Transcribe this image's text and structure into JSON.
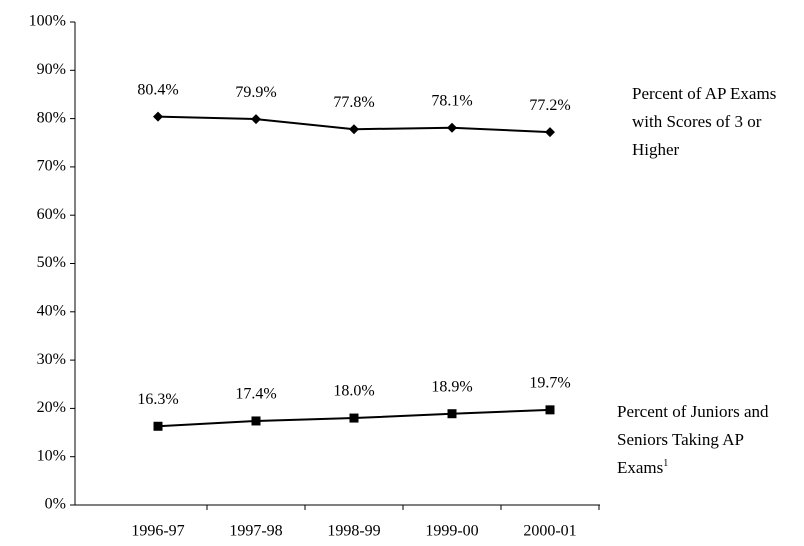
{
  "chart_data": {
    "type": "line",
    "categories": [
      "1996-97",
      "1997-98",
      "1998-99",
      "1999-00",
      "2000-01"
    ],
    "series": [
      {
        "name": "Percent of AP Exams with Scores of 3 or Higher",
        "color": "#000000",
        "marker": "diamond",
        "values": [
          80.4,
          79.9,
          77.8,
          78.1,
          77.2
        ],
        "value_labels": [
          "80.4%",
          "79.9%",
          "77.8%",
          "78.1%",
          "77.2%"
        ]
      },
      {
        "name": "Percent of Juniors and Seniors Taking AP Exams",
        "footnote": "1",
        "color": "#000000",
        "marker": "square",
        "values": [
          16.3,
          17.4,
          18.0,
          18.9,
          19.7
        ],
        "value_labels": [
          "16.3%",
          "17.4%",
          "18.0%",
          "18.9%",
          "19.7%"
        ]
      }
    ],
    "ylim": [
      0,
      100
    ],
    "yticks": [
      {
        "value": 0,
        "label": "0%"
      },
      {
        "value": 10,
        "label": "10%"
      },
      {
        "value": 20,
        "label": "20%"
      },
      {
        "value": 30,
        "label": "30%"
      },
      {
        "value": 40,
        "label": "40%"
      },
      {
        "value": 50,
        "label": "50%"
      },
      {
        "value": 60,
        "label": "60%"
      },
      {
        "value": 70,
        "label": "70%"
      },
      {
        "value": 80,
        "label": "80%"
      },
      {
        "value": 90,
        "label": "90%"
      },
      {
        "value": 100,
        "label": "100%"
      }
    ],
    "grid": false
  }
}
